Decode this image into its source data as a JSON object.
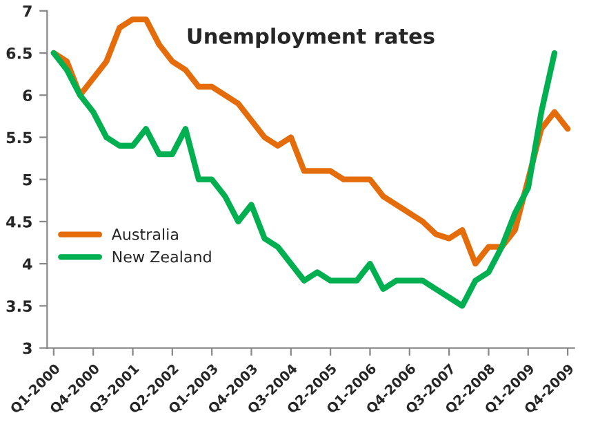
{
  "chart_data": {
    "type": "line",
    "title": "Unemployment rates",
    "categories": [
      "Q1-2000",
      null,
      null,
      "Q4-2000",
      null,
      null,
      "Q3-2001",
      null,
      null,
      "Q2-2002",
      null,
      null,
      "Q1-2003",
      null,
      null,
      "Q4-2003",
      null,
      null,
      "Q3-2004",
      null,
      null,
      "Q2-2005",
      null,
      null,
      "Q1-2006",
      null,
      null,
      "Q4-2006",
      null,
      null,
      "Q3-2007",
      null,
      null,
      "Q2-2008",
      null,
      null,
      "Q1-2009",
      null,
      null,
      "Q4-2009"
    ],
    "series": [
      {
        "name": "Australia",
        "color": "#e46c0a",
        "values": [
          6.5,
          6.4,
          6.0,
          6.2,
          6.4,
          6.8,
          6.9,
          6.9,
          6.6,
          6.4,
          6.3,
          6.1,
          6.1,
          6.0,
          5.9,
          5.7,
          5.5,
          5.4,
          5.5,
          5.1,
          5.1,
          5.1,
          5.0,
          5.0,
          5.0,
          4.8,
          4.7,
          4.6,
          4.5,
          4.35,
          4.3,
          4.4,
          4.0,
          4.2,
          4.2,
          4.4,
          5.0,
          5.6,
          5.8,
          5.6
        ]
      },
      {
        "name": "New Zealand",
        "color": "#00b050",
        "values": [
          6.5,
          6.3,
          6.0,
          5.8,
          5.5,
          5.4,
          5.4,
          5.6,
          5.3,
          5.3,
          5.6,
          5.0,
          5.0,
          4.8,
          4.5,
          4.7,
          4.3,
          4.2,
          4.0,
          3.8,
          3.9,
          3.8,
          3.8,
          3.8,
          4.0,
          3.7,
          3.8,
          3.8,
          3.8,
          3.7,
          3.6,
          3.5,
          3.8,
          3.9,
          4.2,
          4.6,
          4.9,
          5.8,
          6.5,
          null
        ]
      }
    ],
    "ylim": [
      3,
      7
    ],
    "yticks": [
      3,
      3.5,
      4,
      4.5,
      5,
      5.5,
      6,
      6.5,
      7
    ],
    "grid": false,
    "legend": "left",
    "marker": "none",
    "line_style": "solid"
  }
}
